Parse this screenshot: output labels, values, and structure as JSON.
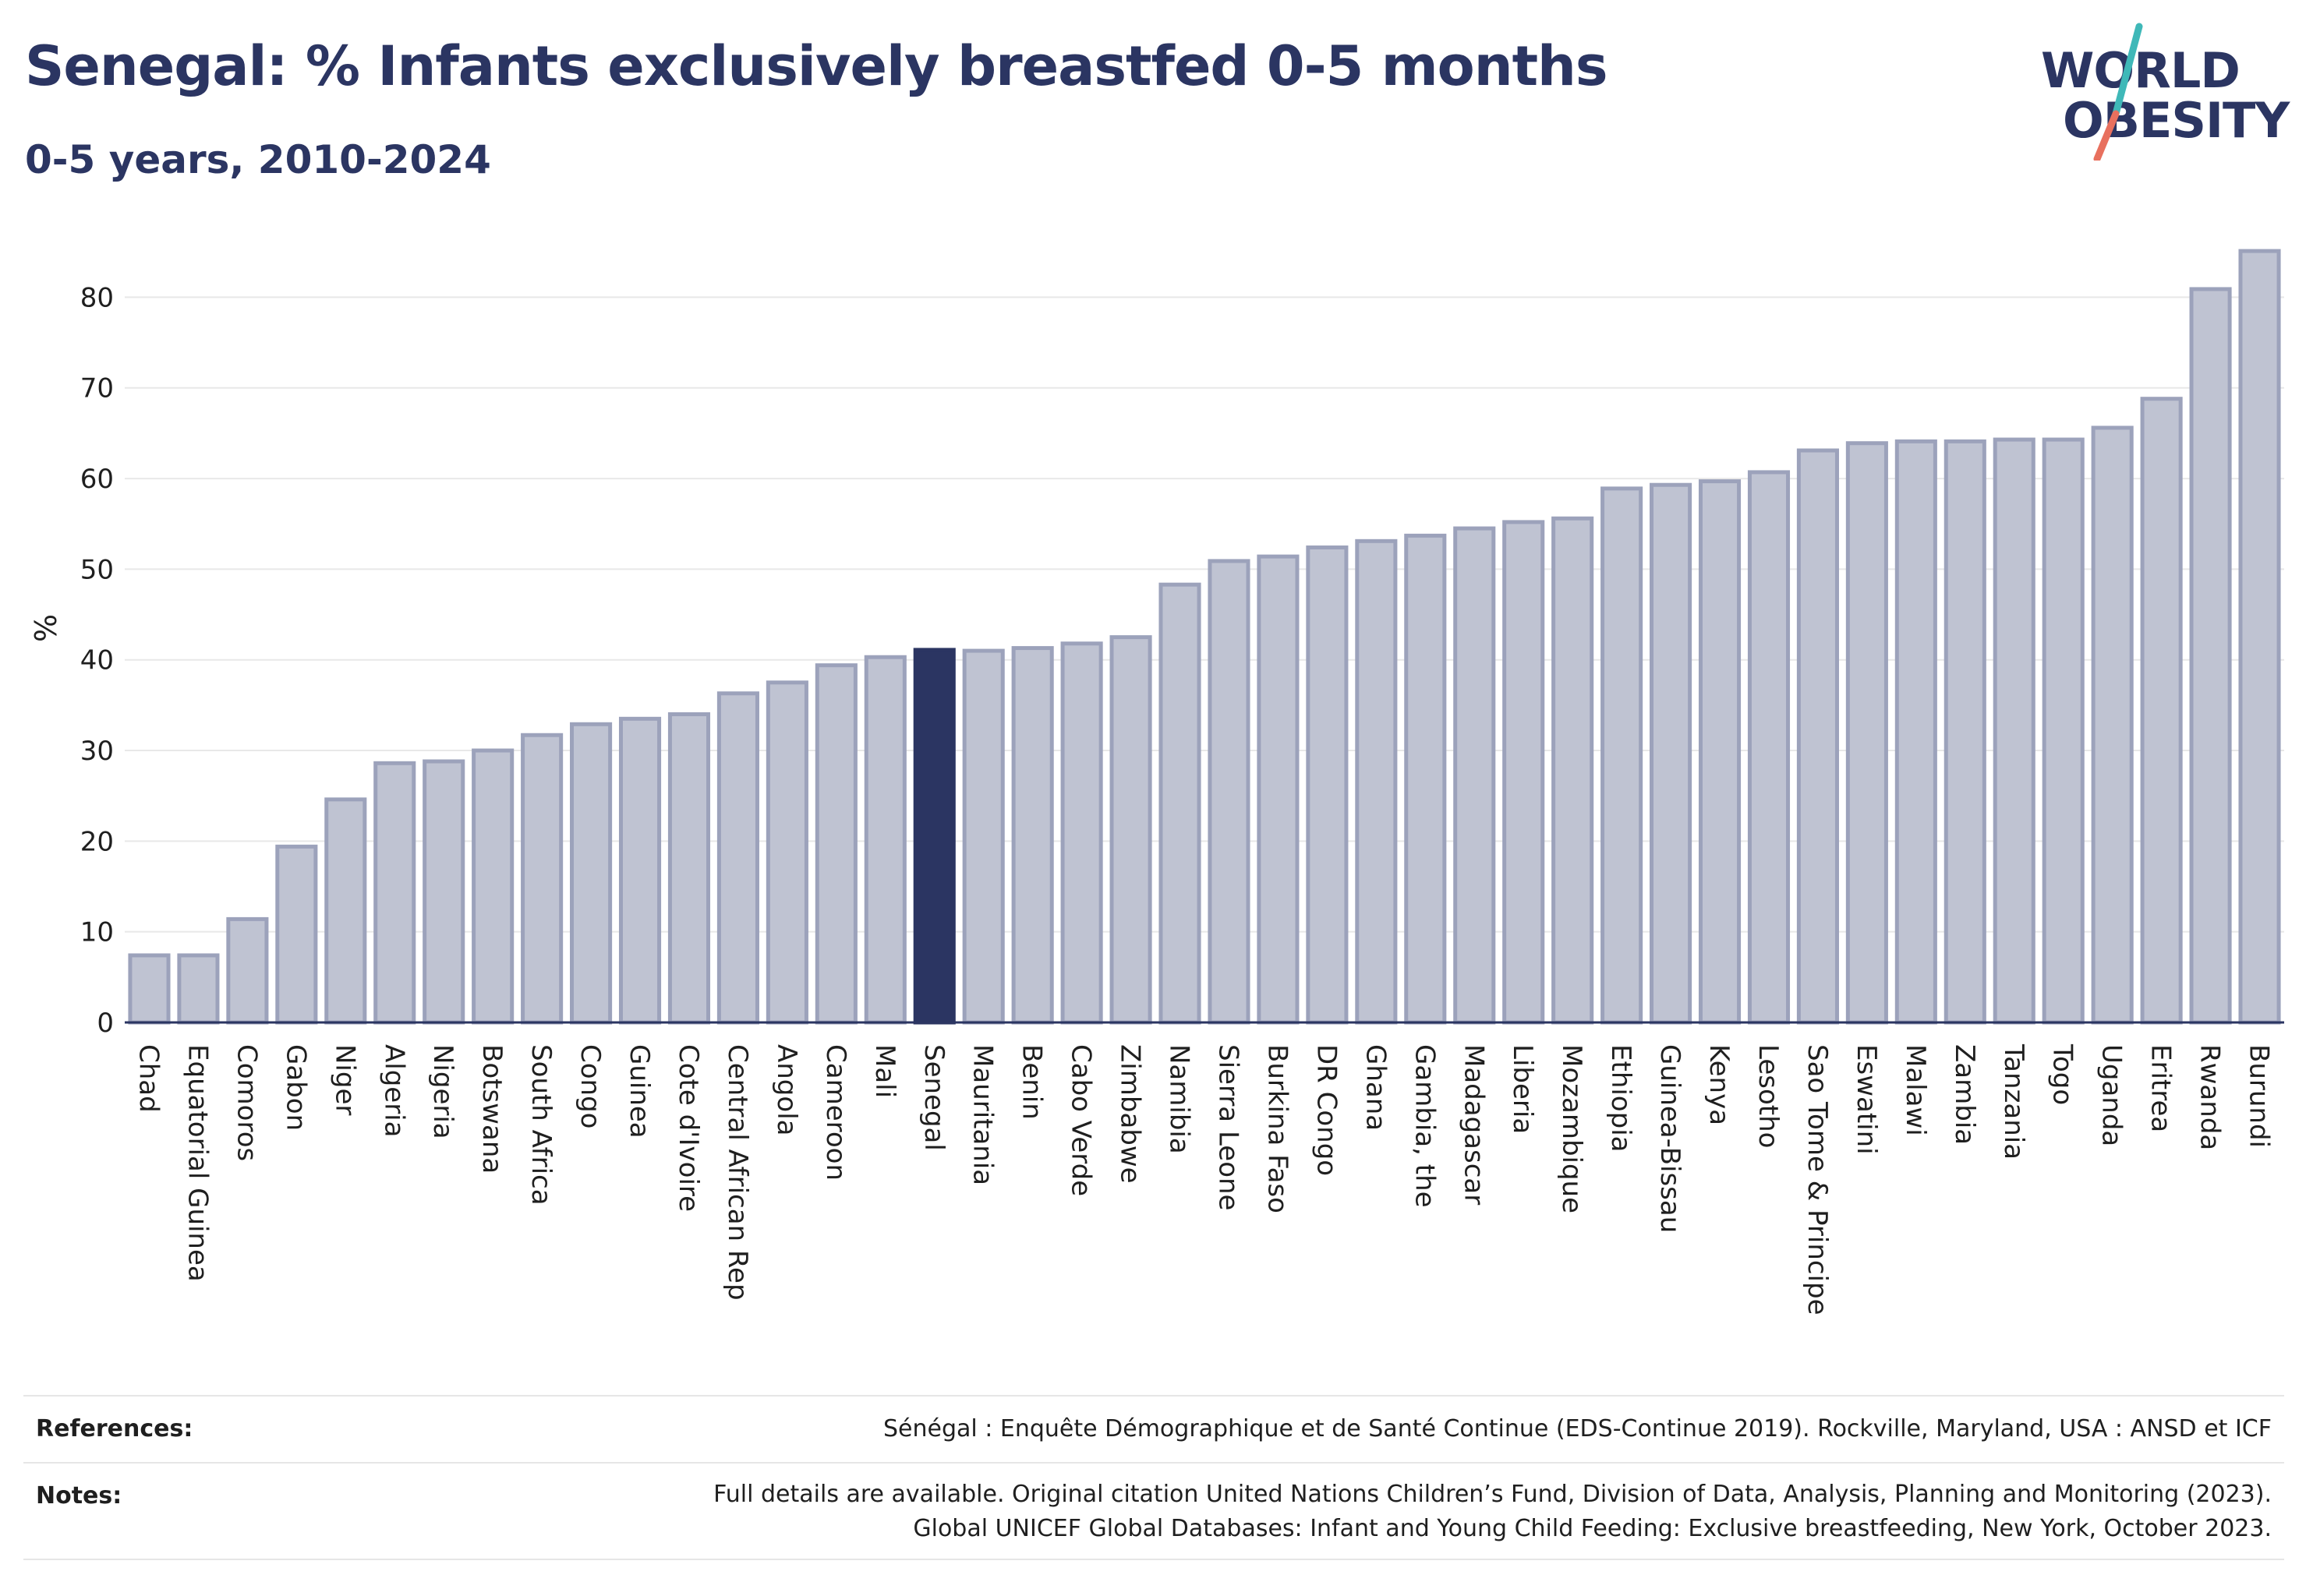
{
  "header": {
    "title": "Senegal: % Infants exclusively breastfed 0-5 months",
    "subtitle": "0-5 years, 2010-2024"
  },
  "logo": {
    "line1": "WORLD",
    "line2": "OBESITY",
    "colors": {
      "text": "#2b3562",
      "slash_teal": "#3fb8b8",
      "slash_coral": "#e8705e"
    }
  },
  "chart_data": {
    "type": "bar",
    "ylabel": "%",
    "xlabel": "",
    "ylim": [
      0,
      87
    ],
    "yticks": [
      0,
      10,
      20,
      30,
      40,
      50,
      60,
      70,
      80
    ],
    "grid": "horizontal",
    "highlight": "Senegal",
    "colors": {
      "bar": "#bfc3d2",
      "bar_border": "#9ca2bb",
      "highlight": "#2b3562",
      "grid": "#e8e8e8"
    },
    "categories": [
      "Chad",
      "Equatorial Guinea",
      "Comoros",
      "Gabon",
      "Niger",
      "Algeria",
      "Nigeria",
      "Botswana",
      "South Africa",
      "Congo",
      "Guinea",
      "Cote d'Ivoire",
      "Central African Rep",
      "Angola",
      "Cameroon",
      "Mali",
      "Senegal",
      "Mauritania",
      "Benin",
      "Cabo Verde",
      "Zimbabwe",
      "Namibia",
      "Sierra Leone",
      "Burkina Faso",
      "DR Congo",
      "Ghana",
      "Gambia, the",
      "Madagascar",
      "Liberia",
      "Mozambique",
      "Ethiopia",
      "Guinea-Bissau",
      "Kenya",
      "Lesotho",
      "Sao Tome & Principe",
      "Eswatini",
      "Malawi",
      "Zambia",
      "Tanzania",
      "Togo",
      "Uganda",
      "Eritrea",
      "Rwanda",
      "Burundi"
    ],
    "values": [
      7.4,
      7.4,
      11.4,
      19.4,
      24.6,
      28.6,
      28.8,
      30.0,
      31.7,
      32.9,
      33.5,
      34.0,
      36.3,
      37.5,
      39.4,
      40.3,
      41.1,
      41.0,
      41.3,
      41.8,
      42.5,
      48.3,
      50.9,
      51.4,
      52.4,
      53.1,
      53.7,
      54.5,
      55.2,
      55.6,
      58.9,
      59.3,
      59.7,
      60.7,
      63.1,
      63.9,
      64.1,
      64.1,
      64.3,
      64.3,
      65.6,
      68.8,
      80.9,
      85.1
    ]
  },
  "footer": {
    "references_label": "References:",
    "references_text": "Sénégal : Enquête Démographique et de Santé Continue (EDS-Continue 2019). Rockville, Maryland, USA : ANSD et ICF",
    "notes_label": "Notes:",
    "notes_line1": "Full details are available. Original citation United Nations Children’s Fund, Division of Data, Analysis, Planning and Monitoring (2023).",
    "notes_line2": "Global UNICEF Global Databases: Infant and Young Child Feeding: Exclusive breastfeeding, New York, October 2023."
  }
}
